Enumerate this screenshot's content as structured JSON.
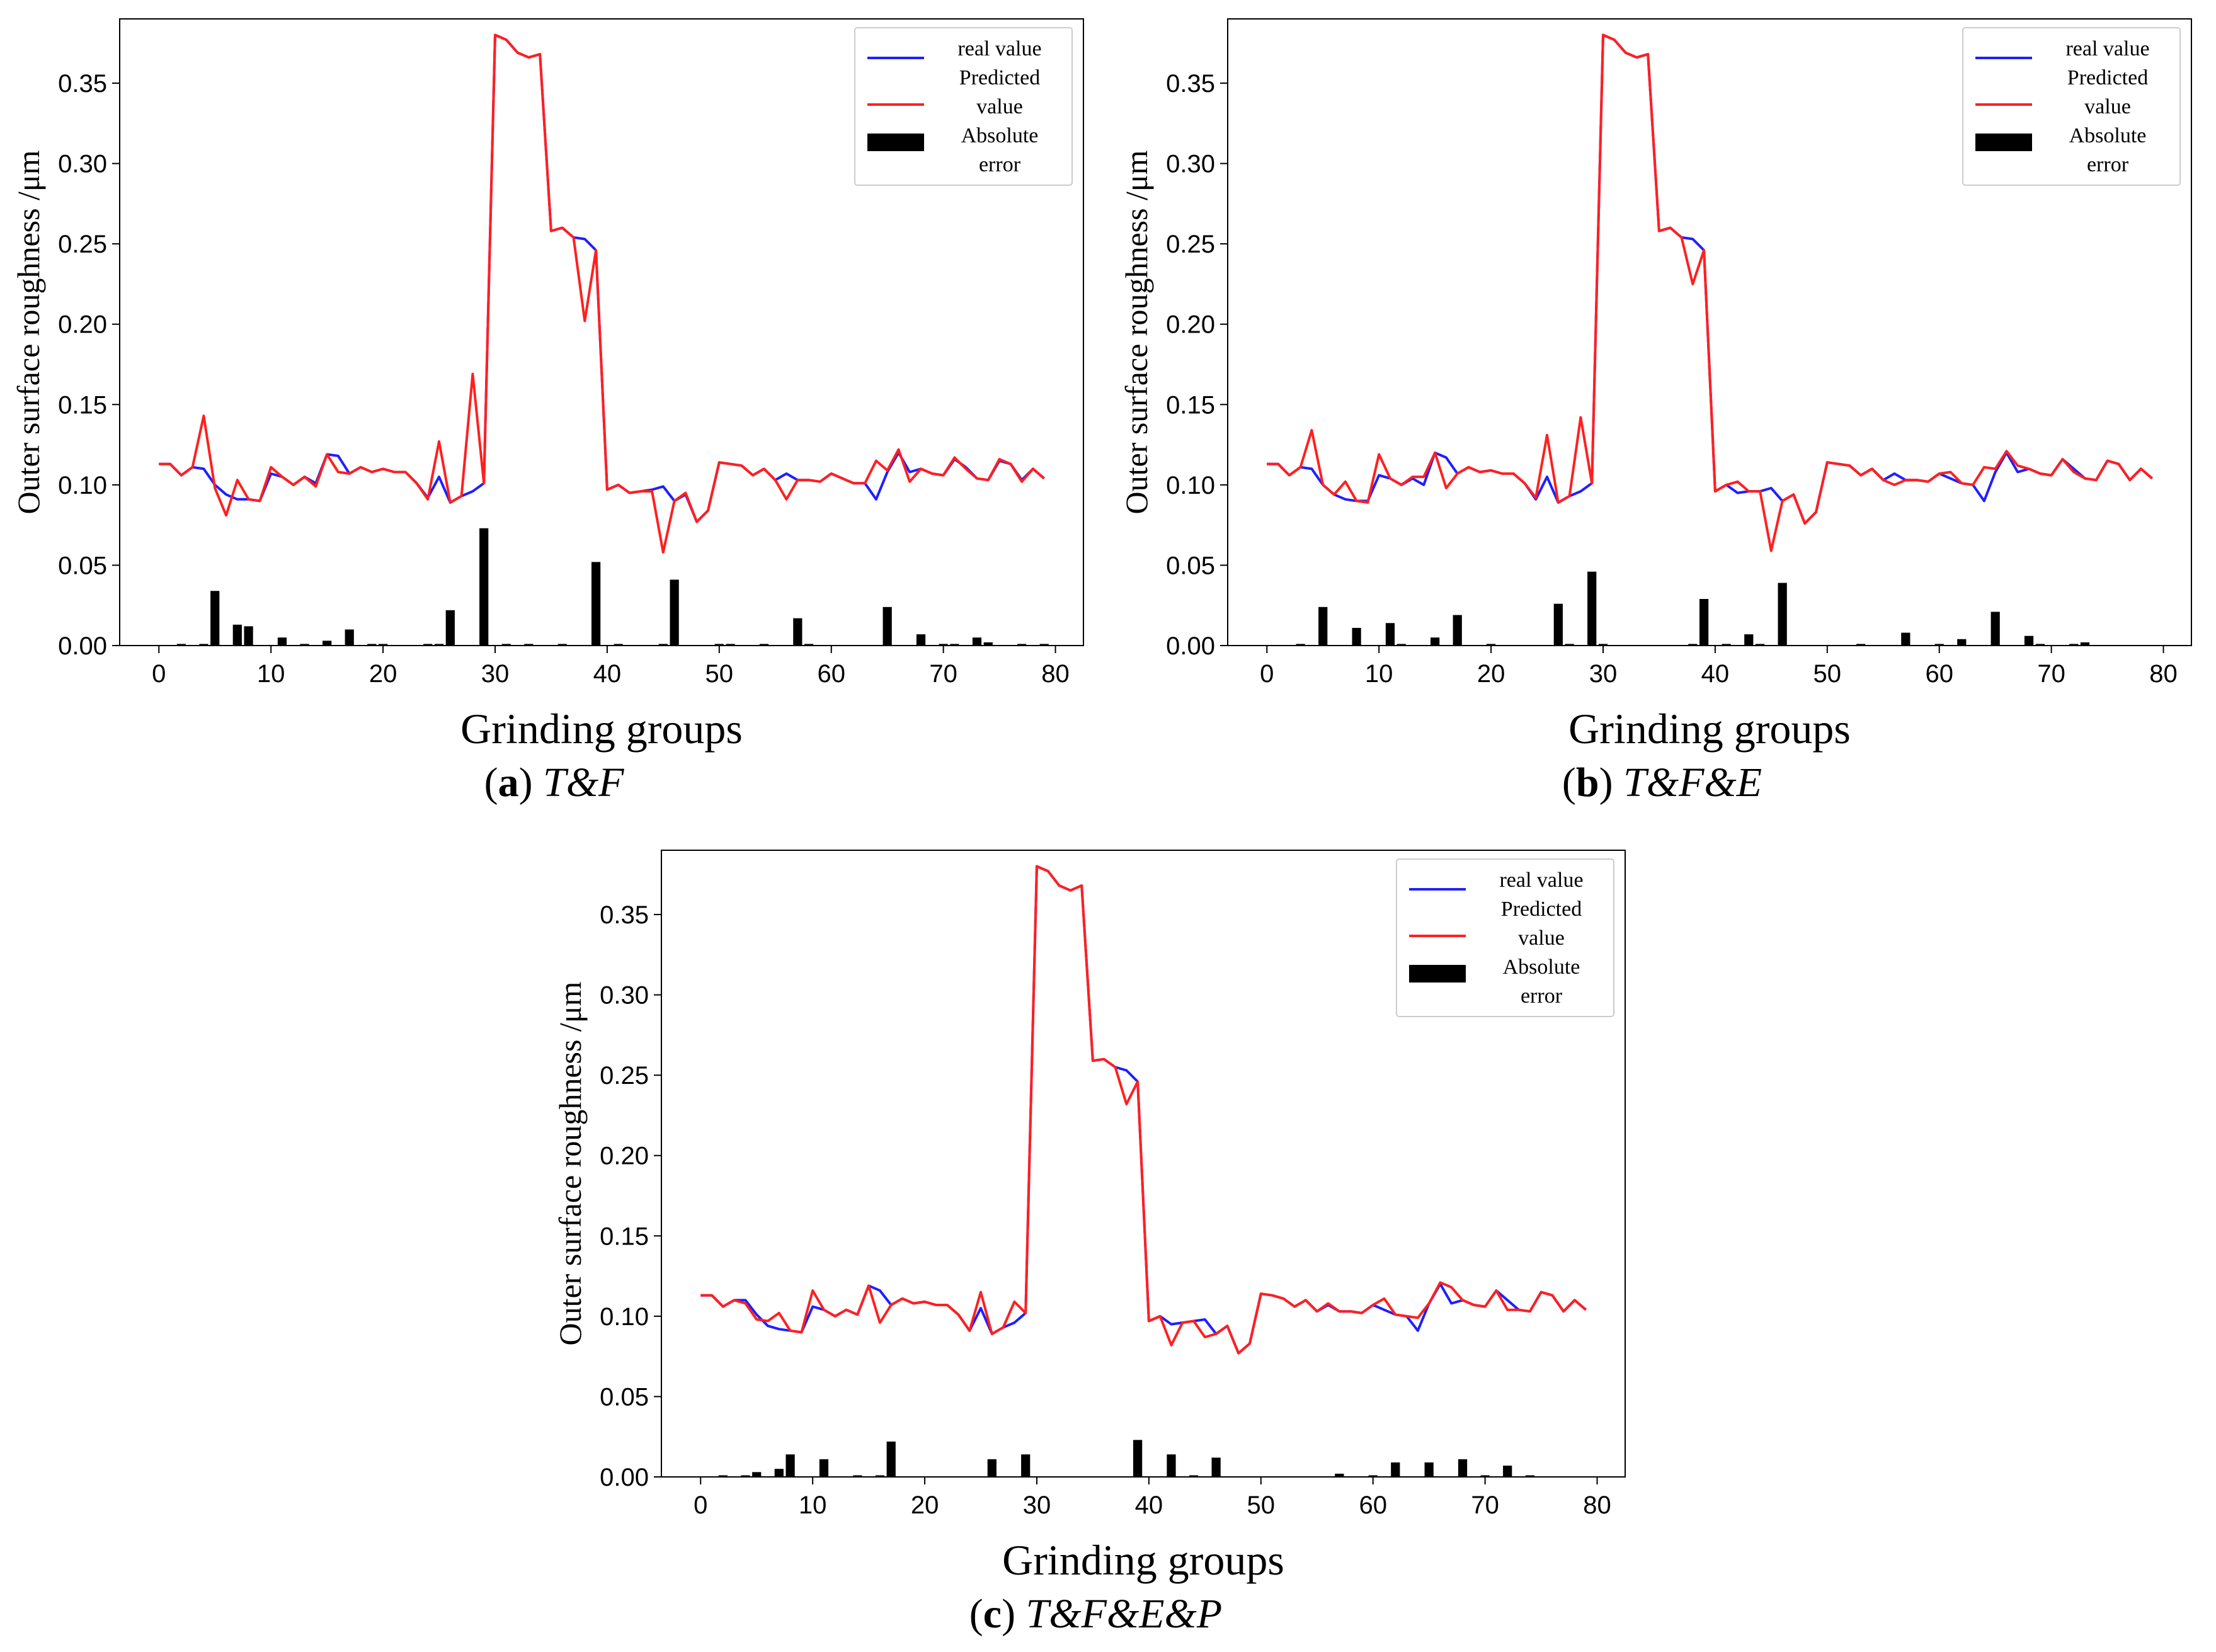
{
  "chart_data": [
    {
      "type": "line+bar",
      "panel_label": "a",
      "caption": "T&F",
      "xlabel": "Grinding groups",
      "ylabel": "Outer surface roughness /μm",
      "xlim": [
        -3.5,
        82.5
      ],
      "ylim": [
        0,
        0.39
      ],
      "xticks": [
        "0",
        "10",
        "20",
        "30",
        "40",
        "50",
        "60",
        "70",
        "80"
      ],
      "yticks": [
        "0.00",
        "0.05",
        "0.10",
        "0.15",
        "0.20",
        "0.25",
        "0.30",
        "0.35"
      ],
      "legend": {
        "position": "top-right",
        "entries": [
          "real value",
          "Predicted value",
          "Absolute error"
        ],
        "line1": "real value",
        "line2a": "Predicted",
        "line2b": "value",
        "line3a": "Absolute",
        "line3b": "error"
      },
      "series": [
        {
          "name": "real value",
          "color": "#1f1fff",
          "values": [
            0.113,
            0.113,
            0.106,
            0.111,
            0.11,
            0.1,
            0.094,
            0.091,
            0.091,
            0.09,
            0.107,
            0.105,
            0.1,
            0.105,
            0.101,
            0.119,
            0.118,
            0.107,
            0.111,
            0.108,
            0.11,
            0.108,
            0.108,
            0.101,
            0.092,
            0.105,
            0.089,
            0.093,
            0.096,
            0.101,
            0.38,
            0.377,
            0.369,
            0.366,
            0.368,
            0.258,
            0.26,
            0.254,
            0.253,
            0.246,
            0.097,
            0.1,
            0.095,
            0.096,
            0.097,
            0.099,
            0.09,
            0.094,
            0.077,
            0.084,
            0.114,
            0.113,
            0.112,
            0.106,
            0.11,
            0.103,
            0.107,
            0.103,
            0.103,
            0.102,
            0.107,
            0.104,
            0.101,
            0.101,
            0.091,
            0.108,
            0.12,
            0.108,
            0.11,
            0.107,
            0.106,
            0.116,
            0.111,
            0.104,
            0.103,
            0.115,
            0.113,
            0.103,
            0.11,
            0.104
          ]
        },
        {
          "name": "Predicted value",
          "color": "#ff2020",
          "values": [
            0.113,
            0.113,
            0.106,
            0.111,
            0.143,
            0.098,
            0.081,
            0.103,
            0.091,
            0.09,
            0.111,
            0.105,
            0.1,
            0.105,
            0.099,
            0.119,
            0.108,
            0.107,
            0.111,
            0.108,
            0.11,
            0.108,
            0.108,
            0.101,
            0.091,
            0.127,
            0.089,
            0.093,
            0.169,
            0.101,
            0.38,
            0.377,
            0.369,
            0.366,
            0.368,
            0.258,
            0.26,
            0.254,
            0.202,
            0.246,
            0.097,
            0.1,
            0.095,
            0.096,
            0.096,
            0.058,
            0.09,
            0.095,
            0.077,
            0.084,
            0.114,
            0.113,
            0.112,
            0.106,
            0.11,
            0.103,
            0.091,
            0.103,
            0.103,
            0.102,
            0.107,
            0.104,
            0.101,
            0.101,
            0.115,
            0.109,
            0.122,
            0.102,
            0.11,
            0.107,
            0.106,
            0.117,
            0.11,
            0.104,
            0.103,
            0.116,
            0.113,
            0.102,
            0.11,
            0.104
          ]
        }
      ],
      "bar_series": {
        "name": "Absolute error",
        "color": "#000000",
        "x": [
          2,
          4,
          5,
          7,
          8,
          11,
          13,
          15,
          17,
          19,
          20,
          24,
          25,
          26,
          29,
          31,
          33,
          36,
          39,
          41,
          45,
          46,
          50,
          51,
          54,
          57,
          58,
          65,
          68,
          70,
          71,
          73,
          74,
          77,
          79
        ],
        "values": [
          0.001,
          0.001,
          0.034,
          0.013,
          0.012,
          0.005,
          0.001,
          0.003,
          0.01,
          0.001,
          0.001,
          0.001,
          0.001,
          0.022,
          0.073,
          0.001,
          0.001,
          0.001,
          0.052,
          0.001,
          0.001,
          0.041,
          0.001,
          0.001,
          0.001,
          0.017,
          0.001,
          0.024,
          0.007,
          0.001,
          0.001,
          0.005,
          0.002,
          0.001,
          0.001
        ]
      }
    },
    {
      "type": "line+bar",
      "panel_label": "b",
      "caption": "T&F&E",
      "xlabel": "Grinding groups",
      "ylabel": "Outer surface roughness /μm",
      "xlim": [
        -3.5,
        82.5
      ],
      "ylim": [
        0,
        0.39
      ],
      "xticks": [
        "0",
        "10",
        "20",
        "30",
        "40",
        "50",
        "60",
        "70",
        "80"
      ],
      "yticks": [
        "0.00",
        "0.05",
        "0.10",
        "0.15",
        "0.20",
        "0.25",
        "0.30",
        "0.35"
      ],
      "legend": {
        "position": "top-right",
        "entries": [
          "real value",
          "Predicted value",
          "Absolute error"
        ],
        "line1": "real value",
        "line2a": "Predicted",
        "line2b": "value",
        "line3a": "Absolute",
        "line3b": "error"
      },
      "series": [
        {
          "name": "real value",
          "color": "#1f1fff",
          "values": [
            0.113,
            0.113,
            0.106,
            0.111,
            0.11,
            0.1,
            0.094,
            0.091,
            0.09,
            0.09,
            0.106,
            0.104,
            0.1,
            0.104,
            0.1,
            0.12,
            0.117,
            0.107,
            0.111,
            0.108,
            0.109,
            0.107,
            0.107,
            0.101,
            0.091,
            0.105,
            0.089,
            0.093,
            0.096,
            0.101,
            0.38,
            0.377,
            0.369,
            0.366,
            0.368,
            0.258,
            0.26,
            0.254,
            0.253,
            0.246,
            0.096,
            0.1,
            0.095,
            0.096,
            0.096,
            0.098,
            0.09,
            0.094,
            0.076,
            0.083,
            0.114,
            0.113,
            0.112,
            0.106,
            0.11,
            0.103,
            0.107,
            0.103,
            0.103,
            0.102,
            0.107,
            0.104,
            0.101,
            0.1,
            0.09,
            0.108,
            0.12,
            0.108,
            0.11,
            0.107,
            0.106,
            0.116,
            0.11,
            0.104,
            0.103,
            0.115,
            0.113,
            0.103,
            0.11,
            0.104
          ]
        },
        {
          "name": "Predicted value",
          "color": "#ff2020",
          "values": [
            0.113,
            0.113,
            0.106,
            0.111,
            0.134,
            0.1,
            0.094,
            0.102,
            0.09,
            0.089,
            0.119,
            0.104,
            0.1,
            0.105,
            0.105,
            0.12,
            0.098,
            0.107,
            0.111,
            0.108,
            0.109,
            0.107,
            0.107,
            0.101,
            0.092,
            0.131,
            0.089,
            0.093,
            0.142,
            0.101,
            0.38,
            0.377,
            0.369,
            0.366,
            0.368,
            0.258,
            0.26,
            0.254,
            0.225,
            0.246,
            0.096,
            0.1,
            0.102,
            0.096,
            0.096,
            0.059,
            0.09,
            0.094,
            0.076,
            0.083,
            0.114,
            0.113,
            0.112,
            0.106,
            0.11,
            0.103,
            0.1,
            0.103,
            0.103,
            0.102,
            0.107,
            0.108,
            0.101,
            0.1,
            0.111,
            0.11,
            0.121,
            0.112,
            0.11,
            0.107,
            0.106,
            0.116,
            0.108,
            0.104,
            0.103,
            0.115,
            0.113,
            0.103,
            0.11,
            0.104
          ]
        }
      ],
      "bar_series": {
        "name": "Absolute error",
        "color": "#000000",
        "x": [
          3,
          5,
          8,
          11,
          12,
          15,
          17,
          20,
          26,
          27,
          29,
          30,
          38,
          39,
          41,
          43,
          44,
          46,
          53,
          57,
          60,
          62,
          65,
          68,
          69,
          72,
          73
        ],
        "values": [
          0.001,
          0.024,
          0.011,
          0.014,
          0.001,
          0.005,
          0.019,
          0.001,
          0.026,
          0.001,
          0.046,
          0.001,
          0.001,
          0.029,
          0.001,
          0.007,
          0.001,
          0.039,
          0.001,
          0.008,
          0.001,
          0.004,
          0.021,
          0.006,
          0.001,
          0.001,
          0.002
        ]
      }
    },
    {
      "type": "line+bar",
      "panel_label": "c",
      "caption": "T&F&E&P",
      "xlabel": "Grinding groups",
      "ylabel": "Outer surface roughness /μm",
      "xlim": [
        -3.5,
        82.5
      ],
      "ylim": [
        0,
        0.39
      ],
      "xticks": [
        "0",
        "10",
        "20",
        "30",
        "40",
        "50",
        "60",
        "70",
        "80"
      ],
      "yticks": [
        "0.00",
        "0.05",
        "0.10",
        "0.15",
        "0.20",
        "0.25",
        "0.30",
        "0.35"
      ],
      "legend": {
        "position": "top-right",
        "entries": [
          "real value",
          "Predicted value",
          "Absolute error"
        ],
        "line1": "real value",
        "line2a": "Predicted",
        "line2b": "value",
        "line3a": "Absolute",
        "line3b": "error"
      },
      "series": [
        {
          "name": "real value",
          "color": "#1f1fff",
          "values": [
            0.113,
            0.113,
            0.106,
            0.11,
            0.11,
            0.101,
            0.094,
            0.092,
            0.091,
            0.09,
            0.106,
            0.104,
            0.1,
            0.104,
            0.101,
            0.119,
            0.116,
            0.107,
            0.111,
            0.108,
            0.109,
            0.107,
            0.107,
            0.101,
            0.091,
            0.105,
            0.089,
            0.093,
            0.096,
            0.102,
            0.38,
            0.377,
            0.368,
            0.365,
            0.368,
            0.259,
            0.26,
            0.255,
            0.253,
            0.246,
            0.097,
            0.1,
            0.095,
            0.096,
            0.097,
            0.098,
            0.089,
            0.094,
            0.077,
            0.083,
            0.114,
            0.113,
            0.111,
            0.106,
            0.11,
            0.103,
            0.107,
            0.103,
            0.103,
            0.102,
            0.107,
            0.104,
            0.101,
            0.1,
            0.091,
            0.108,
            0.12,
            0.108,
            0.11,
            0.107,
            0.106,
            0.116,
            0.11,
            0.104,
            0.103,
            0.115,
            0.113,
            0.103,
            0.11,
            0.104
          ]
        },
        {
          "name": "Predicted value",
          "color": "#ff2020",
          "values": [
            0.113,
            0.113,
            0.106,
            0.11,
            0.108,
            0.098,
            0.097,
            0.102,
            0.091,
            0.09,
            0.116,
            0.104,
            0.1,
            0.104,
            0.101,
            0.119,
            0.096,
            0.107,
            0.111,
            0.108,
            0.109,
            0.107,
            0.107,
            0.101,
            0.091,
            0.115,
            0.089,
            0.093,
            0.109,
            0.102,
            0.38,
            0.377,
            0.368,
            0.365,
            0.368,
            0.259,
            0.26,
            0.255,
            0.232,
            0.246,
            0.097,
            0.1,
            0.082,
            0.096,
            0.097,
            0.087,
            0.089,
            0.094,
            0.077,
            0.083,
            0.114,
            0.113,
            0.111,
            0.106,
            0.11,
            0.103,
            0.108,
            0.103,
            0.103,
            0.102,
            0.107,
            0.111,
            0.101,
            0.1,
            0.099,
            0.108,
            0.121,
            0.118,
            0.11,
            0.107,
            0.106,
            0.116,
            0.104,
            0.104,
            0.103,
            0.115,
            0.113,
            0.103,
            0.11,
            0.104
          ]
        }
      ],
      "bar_series": {
        "name": "Absolute error",
        "color": "#000000",
        "x": [
          2,
          4,
          5,
          7,
          8,
          11,
          14,
          16,
          17,
          26,
          29,
          39,
          42,
          44,
          46,
          57,
          60,
          62,
          65,
          68,
          70,
          72,
          74
        ],
        "values": [
          0.001,
          0.001,
          0.003,
          0.005,
          0.014,
          0.011,
          0.001,
          0.001,
          0.022,
          0.011,
          0.014,
          0.023,
          0.014,
          0.001,
          0.012,
          0.002,
          0.001,
          0.009,
          0.009,
          0.011,
          0.001,
          0.007,
          0.001
        ]
      }
    }
  ]
}
